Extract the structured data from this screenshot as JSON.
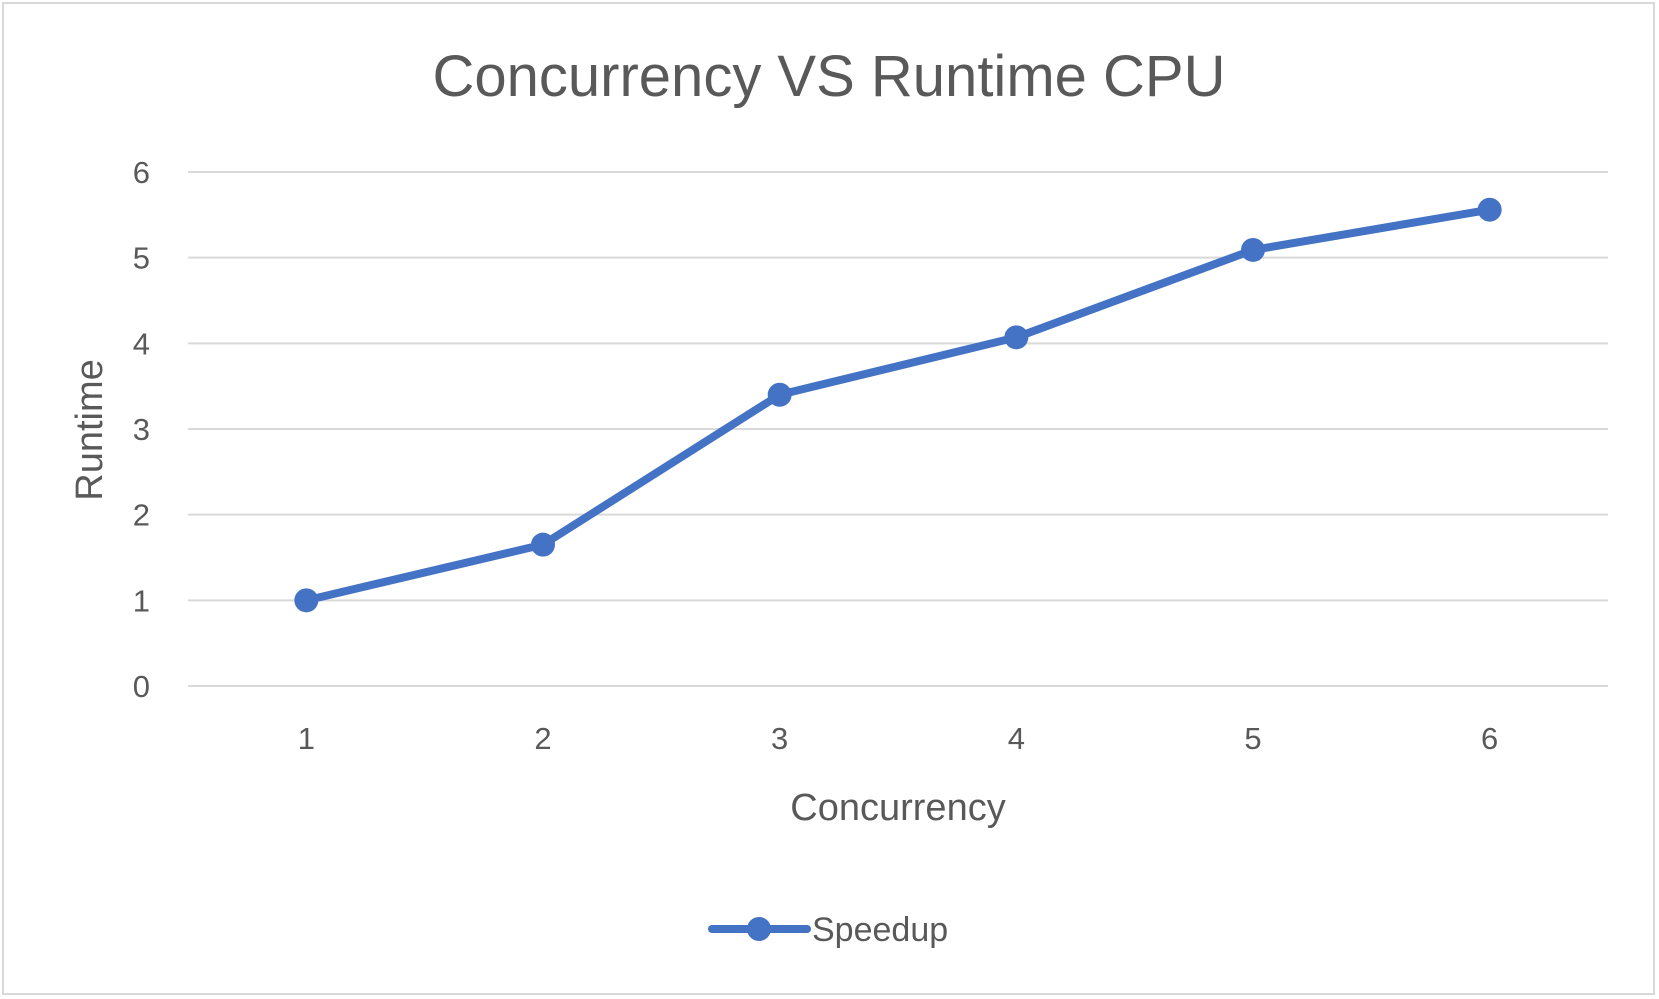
{
  "chart_data": {
    "type": "line",
    "title": "Concurrency VS Runtime CPU",
    "xlabel": "Concurrency",
    "ylabel": "Runtime",
    "categories": [
      "1",
      "2",
      "3",
      "4",
      "5",
      "6"
    ],
    "series": [
      {
        "name": "Speedup",
        "values": [
          1.0,
          1.65,
          3.4,
          4.07,
          5.09,
          5.56
        ],
        "color": "#4472c4"
      }
    ],
    "yticks": [
      "0",
      "1",
      "2",
      "3",
      "4",
      "5",
      "6"
    ],
    "ylim": [
      0,
      6
    ],
    "grid": true,
    "legend": "bottom"
  }
}
